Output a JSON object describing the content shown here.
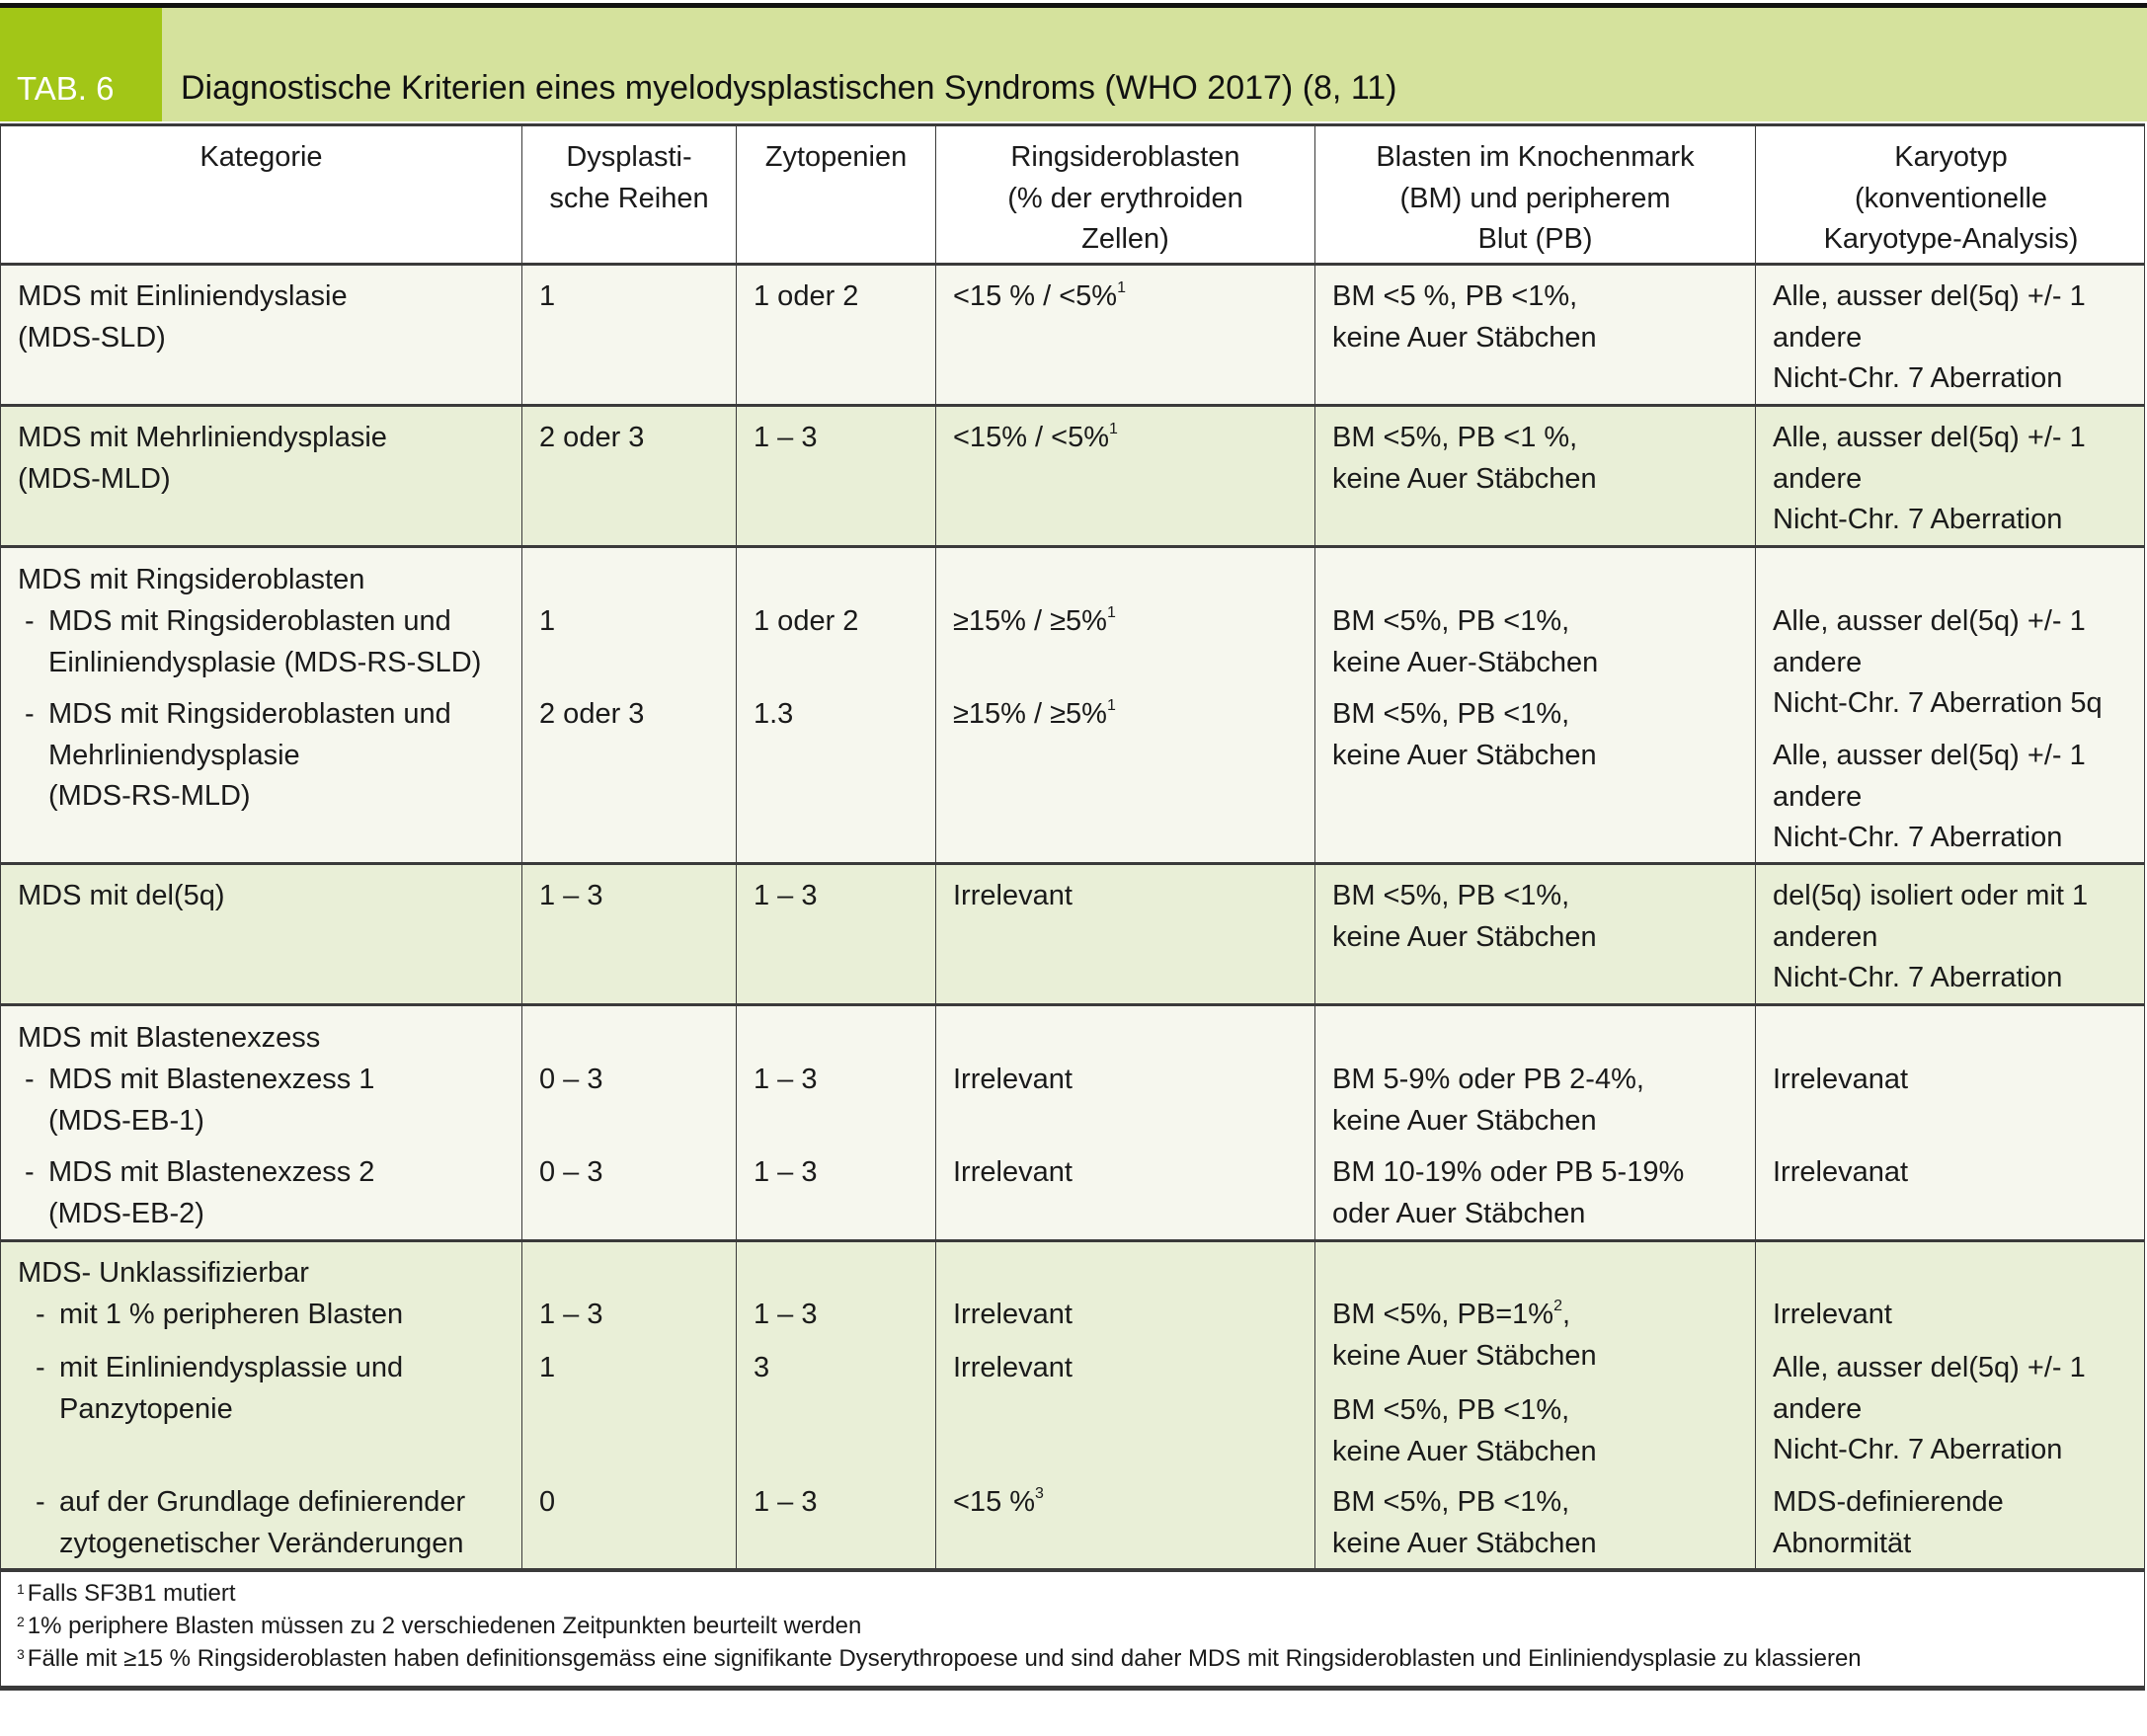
{
  "header": {
    "tab_label": "TAB. 6",
    "title": "Diagnostische Kriterien eines myelodysplastischen Syndroms (WHO 2017) (8, 11)"
  },
  "colors": {
    "tab": "#a2c617",
    "title_band": "#d5e29d",
    "row_light": "#f6f7ee",
    "row_green": "#e9efd7"
  },
  "columns": [
    "Kategorie",
    "Dysplasti-\nsche Reihen",
    "Zytopenien",
    "Ringsideroblasten\n(% der erythroiden\nZellen)",
    "Blasten im Knochenmark\n(BM) und peripherem\nBlut (PB)",
    "Karyotyp\n(konventionelle\nKaryotype-Analysis)"
  ],
  "rows": [
    {
      "cells": [
        [
          {
            "text": "MDS mit Einliniendyslasie\n(MDS-SLD)"
          }
        ],
        [
          {
            "text": "1"
          }
        ],
        [
          {
            "text": "1 oder 2"
          }
        ],
        [
          {
            "text": "<15 % / <5%",
            "sup": "1"
          }
        ],
        [
          {
            "text": "BM <5 %, PB <1%,\nkeine Auer Stäbchen"
          }
        ],
        [
          {
            "text": "Alle, ausser del(5q) +/- 1\nandere\nNicht-Chr. 7 Aberration"
          }
        ]
      ]
    },
    {
      "cells": [
        [
          {
            "text": "MDS mit Mehrliniendysplasie\n(MDS-MLD)"
          }
        ],
        [
          {
            "text": "2 oder 3"
          }
        ],
        [
          {
            "text": "1 – 3"
          }
        ],
        [
          {
            "text": "<15% / <5%",
            "sup": "1"
          }
        ],
        [
          {
            "text": "BM <5%, PB <1 %,\nkeine Auer Stäbchen"
          }
        ],
        [
          {
            "text": "Alle, ausser del(5q) +/- 1\nandere\nNicht-Chr. 7 Aberration"
          }
        ]
      ]
    },
    {
      "cells": [
        [
          {
            "text": "MDS mit Ringsideroblasten"
          },
          {
            "dash": "-",
            "text": "MDS mit Ringsideroblasten und\nEinliniendysplasie (MDS-RS-SLD)"
          },
          {
            "dash": "-",
            "text": "MDS mit Ringsideroblasten und\nMehrliniendysplasie\n(MDS-RS-MLD)"
          }
        ],
        [
          {
            "text": "1"
          },
          {
            "text": "2 oder 3"
          }
        ],
        [
          {
            "text": "1 oder 2"
          },
          {
            "text": "1.3"
          }
        ],
        [
          {
            "text": "≥15% / ≥5%",
            "sup": "1"
          },
          {
            "text": "≥15% / ≥5%",
            "sup": "1"
          }
        ],
        [
          {
            "text": "BM <5%, PB <1%,\nkeine Auer-Stäbchen"
          },
          {
            "text": "BM <5%, PB <1%,\nkeine Auer Stäbchen"
          }
        ],
        [
          {
            "text": "Alle, ausser del(5q) +/- 1\nandere\nNicht-Chr. 7 Aberration 5q"
          },
          {
            "text": "Alle, ausser del(5q) +/- 1\nandere\nNicht-Chr. 7 Aberration"
          }
        ]
      ]
    },
    {
      "cells": [
        [
          {
            "text": "MDS mit del(5q)"
          }
        ],
        [
          {
            "text": "1 – 3"
          }
        ],
        [
          {
            "text": "1 – 3"
          }
        ],
        [
          {
            "text": "Irrelevant"
          }
        ],
        [
          {
            "text": "BM <5%, PB <1%,\nkeine Auer Stäbchen"
          }
        ],
        [
          {
            "text": "del(5q) isoliert oder mit 1\nanderen\nNicht-Chr. 7 Aberration"
          }
        ]
      ]
    },
    {
      "cells": [
        [
          {
            "text": "MDS mit Blastenexzess"
          },
          {
            "dash": "-",
            "text": "MDS mit Blastenexzess 1\n(MDS-EB-1)"
          },
          {
            "dash": "-",
            "text": "MDS mit Blastenexzess 2\n(MDS-EB-2)"
          }
        ],
        [
          {
            "text": "0 – 3"
          },
          {
            "text": "0 – 3"
          }
        ],
        [
          {
            "text": "1 – 3"
          },
          {
            "text": "1 – 3"
          }
        ],
        [
          {
            "text": "Irrelevant"
          },
          {
            "text": "Irrelevant"
          }
        ],
        [
          {
            "text": "BM 5-9% oder PB 2-4%,\nkeine Auer Stäbchen"
          },
          {
            "text": "BM 10-19% oder PB 5-19%\noder Auer Stäbchen"
          }
        ],
        [
          {
            "text": "Irrelevanat"
          },
          {
            "text": "Irrelevanat"
          }
        ]
      ]
    },
    {
      "cells": [
        [
          {
            "text": "MDS- Unklassifizierbar"
          },
          {
            "dash": "-",
            "text": "mit 1 % peripheren Blasten"
          },
          {
            "dash": "-",
            "text": "mit Einliniendysplassie und\nPanzytopenie"
          },
          {
            "dash": "-",
            "text": "auf der Grundlage definierender\nzytogenetischer Veränderungen"
          }
        ],
        [
          {
            "text": "1 – 3"
          },
          {
            "text": "1"
          },
          {
            "text": "0"
          }
        ],
        [
          {
            "text": "1 – 3"
          },
          {
            "text": "3"
          },
          {
            "text": "1 – 3"
          }
        ],
        [
          {
            "text": "Irrelevant"
          },
          {
            "text": "Irrelevant"
          },
          {
            "text": "<15 %",
            "sup": "3"
          }
        ],
        [
          {
            "text": "BM <5%, PB=1%",
            "sup": "2",
            "tail": ",\nkeine Auer Stäbchen"
          },
          {
            "text": "BM <5%, PB <1%,\nkeine Auer Stäbchen"
          },
          {
            "text": "BM <5%, PB <1%,\nkeine Auer Stäbchen"
          }
        ],
        [
          {
            "text": "Irrelevant"
          },
          {
            "text": "Alle, ausser del(5q) +/- 1\nandere\nNicht-Chr. 7 Aberration"
          },
          {
            "text": "MDS-definierende\nAbnormität"
          }
        ]
      ]
    }
  ],
  "footnotes": [
    {
      "mark": "1",
      "text": "Falls SF3B1 mutiert"
    },
    {
      "mark": "2",
      "text": "1% periphere Blasten müssen zu 2 verschiedenen Zeitpunkten beurteilt werden"
    },
    {
      "mark": "3",
      "text": "Fälle mit ≥15 % Ringsideroblasten haben definitionsgemäss eine signifikante Dyserythropoese und sind daher MDS mit Ringsideroblasten und Einliniendysplasie zu klassieren"
    }
  ]
}
